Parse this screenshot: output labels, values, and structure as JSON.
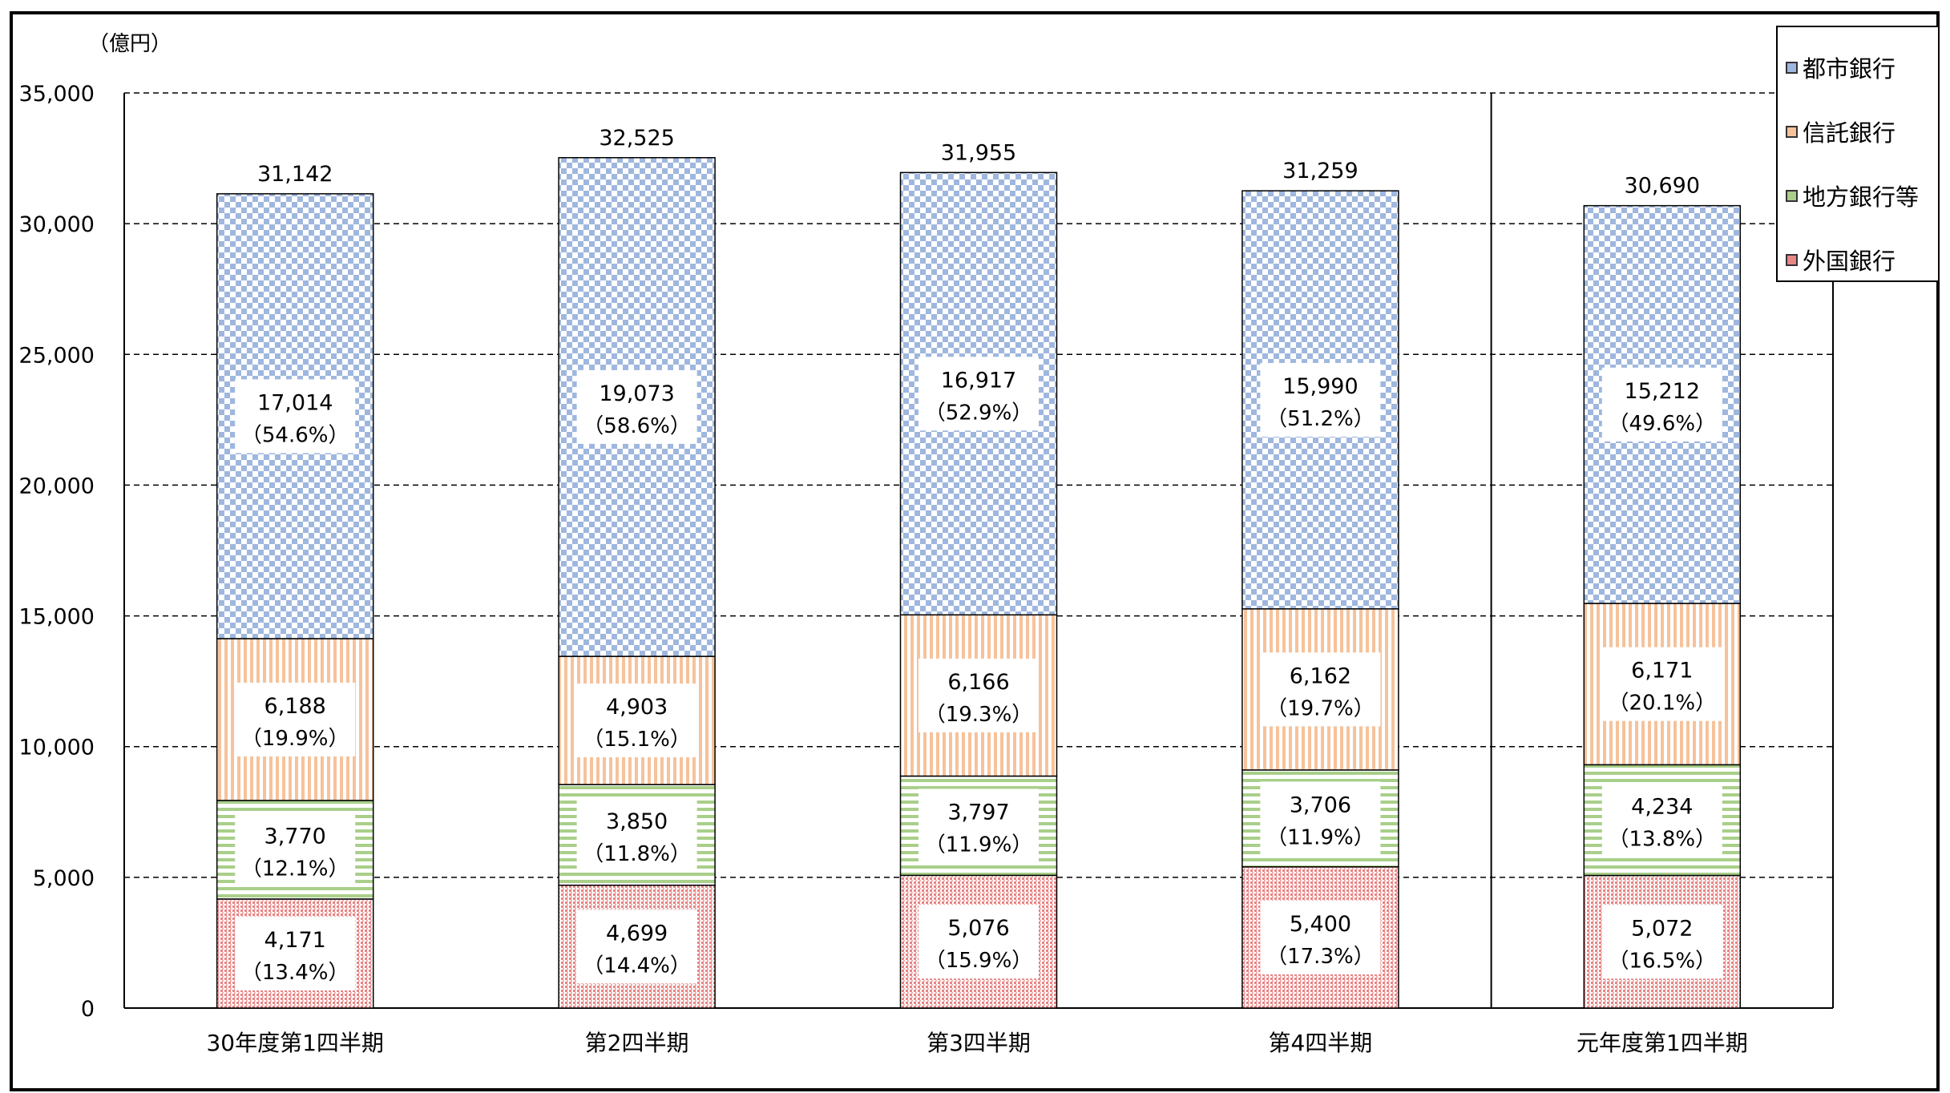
{
  "chart_data": {
    "type": "bar",
    "stacked": true,
    "yunit": "（億円）",
    "ylim": [
      0,
      35000
    ],
    "yticks": [
      0,
      5000,
      10000,
      15000,
      20000,
      25000,
      30000,
      35000
    ],
    "ytick_labels": [
      "0",
      "5,000",
      "10,000",
      "15,000",
      "20,000",
      "25,000",
      "30,000",
      "35,000"
    ],
    "grid": true,
    "legend_position": "top-right",
    "categories": [
      "30年度第1四半期",
      "第2四半期",
      "第3四半期",
      "第4四半期",
      "元年度第1四半期"
    ],
    "totals": [
      31142,
      32525,
      31955,
      31259,
      30690
    ],
    "total_labels": [
      "31,142",
      "32,525",
      "31,955",
      "31,259",
      "30,690"
    ],
    "series": [
      {
        "name": "外国銀行",
        "color": "#e88585",
        "pattern": "dots",
        "values": [
          4171,
          4699,
          5076,
          5400,
          5072
        ],
        "labels": [
          "4,171",
          "4,699",
          "5,076",
          "5,400",
          "5,072"
        ],
        "shares": [
          "（13.4%）",
          "（14.4%）",
          "（15.9%）",
          "（17.3%）",
          "（16.5%）"
        ]
      },
      {
        "name": "地方銀行等",
        "color": "#a9cf8a",
        "pattern": "horizontal-stripes",
        "values": [
          3770,
          3850,
          3797,
          3706,
          4234
        ],
        "labels": [
          "3,770",
          "3,850",
          "3,797",
          "3,706",
          "4,234"
        ],
        "shares": [
          "（12.1%）",
          "（11.8%）",
          "（11.9%）",
          "（11.9%）",
          "（13.8%）"
        ]
      },
      {
        "name": "信託銀行",
        "color": "#f6c29b",
        "pattern": "vertical-stripes",
        "values": [
          6188,
          4903,
          6166,
          6162,
          6171
        ],
        "labels": [
          "6,188",
          "4,903",
          "6,166",
          "6,162",
          "6,171"
        ],
        "shares": [
          "（19.9%）",
          "（15.1%）",
          "（19.3%）",
          "（19.7%）",
          "（20.1%）"
        ]
      },
      {
        "name": "都市銀行",
        "color": "#9fb7de",
        "pattern": "checker",
        "values": [
          17014,
          19073,
          16917,
          15990,
          15212
        ],
        "labels": [
          "17,014",
          "19,073",
          "16,917",
          "15,990",
          "15,212"
        ],
        "shares": [
          "（54.6%）",
          "（58.6%）",
          "（52.9%）",
          "（51.2%）",
          "（49.6%）"
        ]
      }
    ],
    "legend_order": [
      "都市銀行",
      "信託銀行",
      "地方銀行等",
      "外国銀行"
    ]
  }
}
